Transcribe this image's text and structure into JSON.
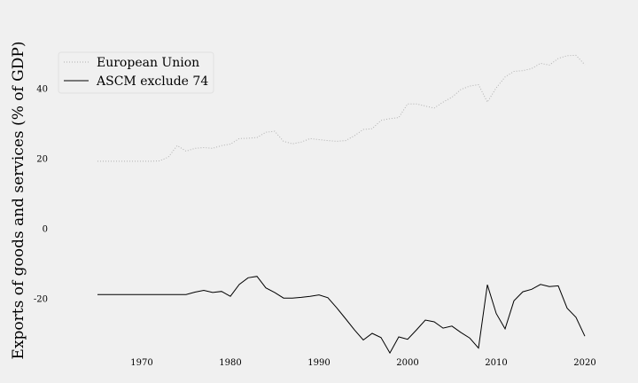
{
  "chart_data": {
    "type": "line",
    "title": "",
    "xlabel": "",
    "ylabel": "Exports of goods and services (% of GDP)",
    "xlim": [
      1960,
      2024
    ],
    "ylim": [
      -38,
      54
    ],
    "xticks": [
      1970,
      1980,
      1990,
      2000,
      2010,
      2020
    ],
    "yticks": [
      -20,
      0,
      20,
      40
    ],
    "grid": false,
    "legend_position": "top-left",
    "x": [
      1965,
      1966,
      1967,
      1968,
      1969,
      1970,
      1971,
      1972,
      1973,
      1974,
      1975,
      1976,
      1977,
      1978,
      1979,
      1980,
      1981,
      1982,
      1983,
      1984,
      1985,
      1986,
      1987,
      1988,
      1989,
      1990,
      1991,
      1992,
      1993,
      1994,
      1995,
      1996,
      1997,
      1998,
      1999,
      2000,
      2001,
      2002,
      2003,
      2004,
      2005,
      2006,
      2007,
      2008,
      2009,
      2010,
      2011,
      2012,
      2013,
      2014,
      2015,
      2016,
      2017,
      2018,
      2019,
      2020
    ],
    "series": [
      {
        "name": "European Union",
        "color": "#b0b0b0",
        "style": "dotted",
        "values": [
          19.3,
          19.3,
          19.3,
          19.3,
          19.3,
          19.3,
          19.3,
          19.4,
          20.5,
          23.8,
          22.2,
          23.0,
          23.2,
          23.0,
          23.8,
          24.2,
          25.8,
          25.9,
          26.1,
          27.6,
          27.9,
          25.0,
          24.3,
          24.8,
          25.8,
          25.5,
          25.2,
          25.0,
          25.2,
          26.6,
          28.4,
          28.6,
          31.0,
          31.5,
          31.8,
          35.7,
          35.7,
          35.1,
          34.5,
          36.2,
          37.6,
          39.8,
          40.8,
          41.2,
          36.2,
          40.3,
          43.4,
          45.0,
          45.2,
          45.8,
          47.3,
          46.8,
          48.7,
          49.5,
          49.6,
          46.9
        ]
      },
      {
        "name": "ASCM exclude 74",
        "color": "#000000",
        "style": "solid",
        "values": [
          -18.8,
          -18.8,
          -18.8,
          -18.8,
          -18.8,
          -18.8,
          -18.8,
          -18.8,
          -18.8,
          -18.8,
          -18.8,
          -18.1,
          -17.6,
          -18.2,
          -17.9,
          -19.3,
          -15.9,
          -14.0,
          -13.6,
          -16.9,
          -18.2,
          -19.8,
          -19.8,
          -19.6,
          -19.3,
          -18.9,
          -19.7,
          -22.6,
          -25.7,
          -28.9,
          -31.8,
          -29.9,
          -31.1,
          -35.5,
          -30.9,
          -31.6,
          -28.9,
          -26.1,
          -26.6,
          -28.4,
          -27.8,
          -29.6,
          -31.2,
          -34.1,
          -16.0,
          -24.2,
          -28.6,
          -20.6,
          -18.0,
          -17.3,
          -15.9,
          -16.5,
          -16.3,
          -22.7,
          -25.3,
          -30.7
        ]
      }
    ]
  }
}
